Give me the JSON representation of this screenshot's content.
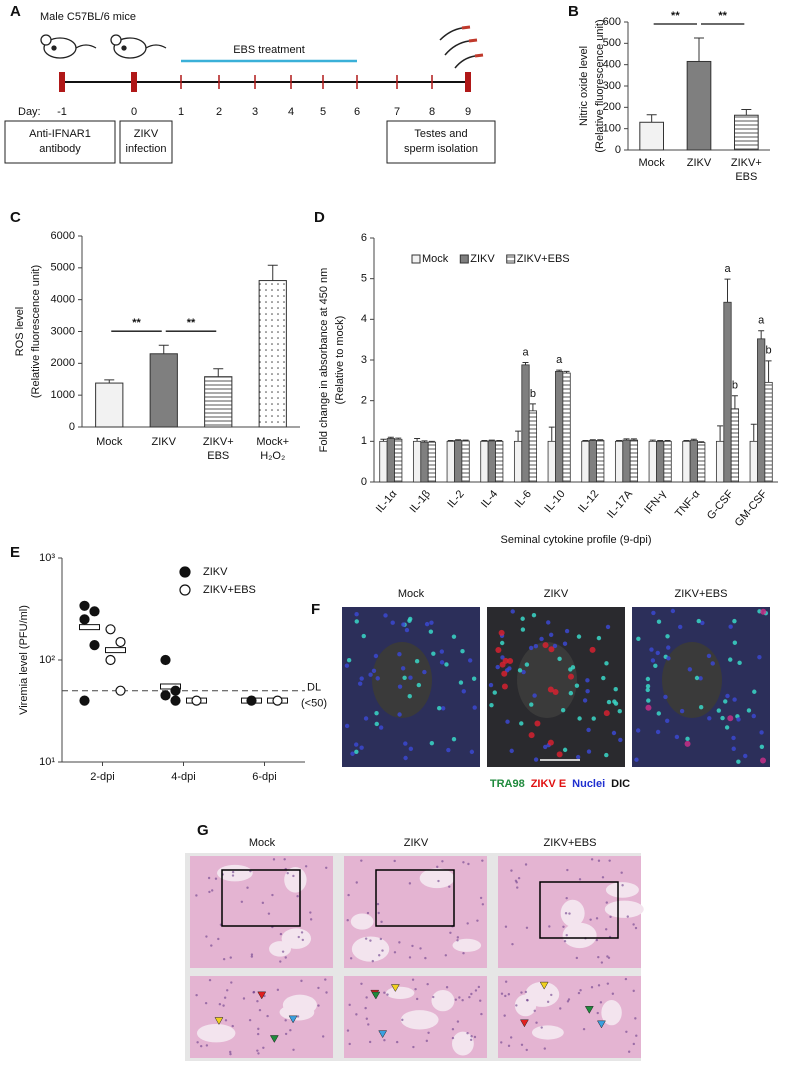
{
  "panel_labels": [
    "A",
    "B",
    "C",
    "D",
    "E",
    "F",
    "G"
  ],
  "timeline": {
    "title": "Male C57BL/6 mice",
    "day_label": "Day:",
    "days": [
      "-1",
      "0",
      "1",
      "2",
      "3",
      "4",
      "5",
      "6",
      "7",
      "8",
      "9"
    ],
    "treatment": "EBS treatment",
    "boxes": [
      [
        "Anti-IFNAR1",
        "antibody"
      ],
      [
        "ZIKV",
        "infection"
      ],
      [
        "Testes and",
        "sperm isolation"
      ]
    ]
  },
  "chart_data": [
    {
      "type": "bar",
      "ylabel": [
        "Nitric oxide level",
        "(Relative fluorescence unit)"
      ],
      "categories": [
        [
          "Mock"
        ],
        [
          "ZIKV"
        ],
        [
          "ZIKV+",
          "EBS"
        ]
      ],
      "values": [
        130,
        415,
        163
      ],
      "errors": [
        35,
        110,
        27
      ],
      "fills": [
        "#f2f2f2",
        "#7f7f7f",
        "stripes"
      ],
      "ylim": [
        0,
        600
      ],
      "yticks": [
        0,
        100,
        200,
        300,
        400,
        500,
        600
      ],
      "significance": [
        "**",
        "**"
      ]
    },
    {
      "type": "bar",
      "ylabel": [
        "ROS level",
        "(Relative fluorescence unit)"
      ],
      "categories": [
        [
          "Mock"
        ],
        [
          "ZIKV"
        ],
        [
          "ZIKV+",
          "EBS"
        ],
        [
          "Mock+",
          "H₂O₂"
        ]
      ],
      "values": [
        1380,
        2300,
        1580,
        4600
      ],
      "errors": [
        100,
        270,
        250,
        480
      ],
      "fills": [
        "#f2f2f2",
        "#7f7f7f",
        "stripes",
        "dots"
      ],
      "ylim": [
        0,
        6000
      ],
      "yticks": [
        0,
        1000,
        2000,
        3000,
        4000,
        5000,
        6000
      ],
      "significance": [
        "**",
        "**"
      ]
    },
    {
      "type": "grouped-bar",
      "ylabel": [
        "Fold change in absorbance at 450 nm",
        "(Relative to mock)"
      ],
      "xlabel": "Seminal cytokine profile (9-dpi)",
      "categories": [
        "IL-1α",
        "IL-1β",
        "IL-2",
        "IL-4",
        "IL-6",
        "IL-10",
        "IL-12",
        "IL-17A",
        "IFN-γ",
        "TNF-α",
        "G-CSF",
        "GM-CSF"
      ],
      "series": [
        {
          "name": "Mock",
          "fill": "#f2f2f2",
          "values": [
            1,
            1,
            1,
            1,
            1,
            1,
            1,
            1,
            1,
            1,
            1,
            1
          ],
          "errors": [
            0.05,
            0.07,
            0.02,
            0.02,
            0.25,
            0.35,
            0.02,
            0.02,
            0.03,
            0.02,
            0.38,
            0.42
          ],
          "letters": [
            null,
            null,
            null,
            null,
            null,
            null,
            null,
            null,
            null,
            null,
            null,
            null
          ]
        },
        {
          "name": "ZIKV",
          "fill": "#7f7f7f",
          "values": [
            1.07,
            0.98,
            1.02,
            1.01,
            2.88,
            2.72,
            1.02,
            1.03,
            1.0,
            1.02,
            4.42,
            3.52
          ],
          "errors": [
            0.03,
            0.03,
            0.02,
            0.02,
            0.06,
            0.03,
            0.02,
            0.03,
            0.02,
            0.03,
            0.57,
            0.2
          ],
          "letters": [
            null,
            null,
            null,
            null,
            "a",
            "a",
            null,
            null,
            null,
            null,
            "a",
            "a"
          ]
        },
        {
          "name": "ZIKV+EBS",
          "fill": "stripes",
          "values": [
            1.05,
            0.98,
            1.01,
            1.0,
            1.75,
            2.68,
            1.02,
            1.03,
            1.0,
            0.97,
            1.8,
            2.45
          ],
          "errors": [
            0.03,
            0.02,
            0.02,
            0.02,
            0.17,
            0.04,
            0.02,
            0.03,
            0.02,
            0.02,
            0.32,
            0.53
          ],
          "letters": [
            null,
            null,
            null,
            null,
            "b",
            null,
            null,
            null,
            null,
            null,
            "b",
            "b"
          ]
        }
      ],
      "ylim": [
        0,
        6
      ],
      "yticks": [
        0,
        1,
        2,
        3,
        4,
        5,
        6
      ],
      "legend": "top-left"
    },
    {
      "type": "scatter",
      "ylabel": "Viremia level (PFU/ml)",
      "log_y": true,
      "categories": [
        "2-dpi",
        "4-dpi",
        "6-dpi"
      ],
      "series": [
        {
          "name": "ZIKV",
          "marker": "filled",
          "values": [
            [
              340,
              300,
              250,
              140,
              40
            ],
            [
              100,
              50,
              45,
              40
            ],
            [
              40
            ]
          ],
          "means": [
            210,
            55,
            40
          ]
        },
        {
          "name": "ZIKV+EBS",
          "marker": "open",
          "values": [
            [
              200,
              150,
              100,
              50
            ],
            [
              40
            ],
            [
              40
            ]
          ],
          "means": [
            125,
            40,
            40
          ]
        }
      ],
      "reference": {
        "value": 50,
        "label": "DL",
        "sublabel": "(<50)"
      },
      "ylim": [
        10,
        1000
      ],
      "yticks": [
        {
          "value": 10,
          "label": "10¹"
        },
        {
          "value": 100,
          "label": "10²"
        },
        {
          "value": 1000,
          "label": "10³"
        }
      ],
      "legend": "top-right"
    }
  ],
  "microscopy": {
    "columns": [
      "Mock",
      "ZIKV",
      "ZIKV+EBS"
    ],
    "legend": [
      {
        "text": "TRA98",
        "color": "#1f8a3c"
      },
      {
        "text": "ZIKV E",
        "color": "#e01010"
      },
      {
        "text": "Nuclei",
        "color": "#1f2fd0"
      },
      {
        "text": "DIC",
        "color": "#111111"
      }
    ]
  },
  "histology": {
    "columns": [
      "Mock",
      "ZIKV",
      "ZIKV+EBS"
    ]
  }
}
